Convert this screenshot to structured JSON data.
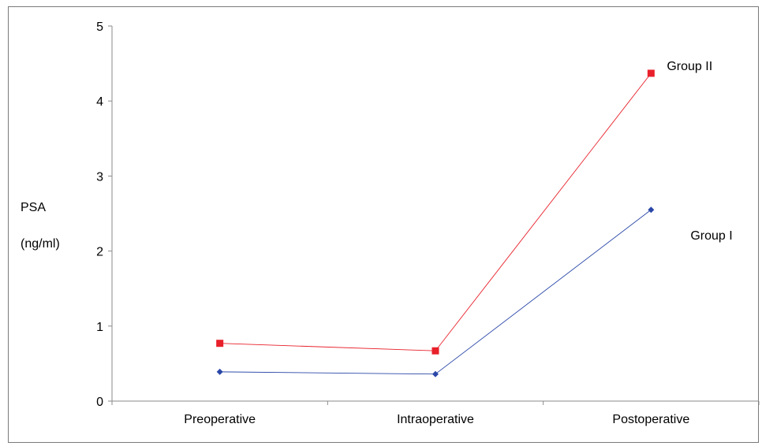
{
  "chart_data": {
    "type": "line",
    "title": "",
    "ylabel_line1": "PSA",
    "ylabel_line2": "(ng/ml)",
    "xlabel": "",
    "categories": [
      "Preoperative",
      "Intraoperative",
      "Postoperative"
    ],
    "ylim": [
      0,
      5
    ],
    "yticks": [
      0,
      1,
      2,
      3,
      4,
      5
    ],
    "grid": false,
    "series": [
      {
        "name": "Group I",
        "values": [
          0.39,
          0.36,
          2.55
        ],
        "color": "#2a47a8",
        "marker": "diamond"
      },
      {
        "name": "Group II",
        "values": [
          0.77,
          0.67,
          4.37
        ],
        "color": "#e8202a",
        "marker": "square"
      }
    ]
  }
}
